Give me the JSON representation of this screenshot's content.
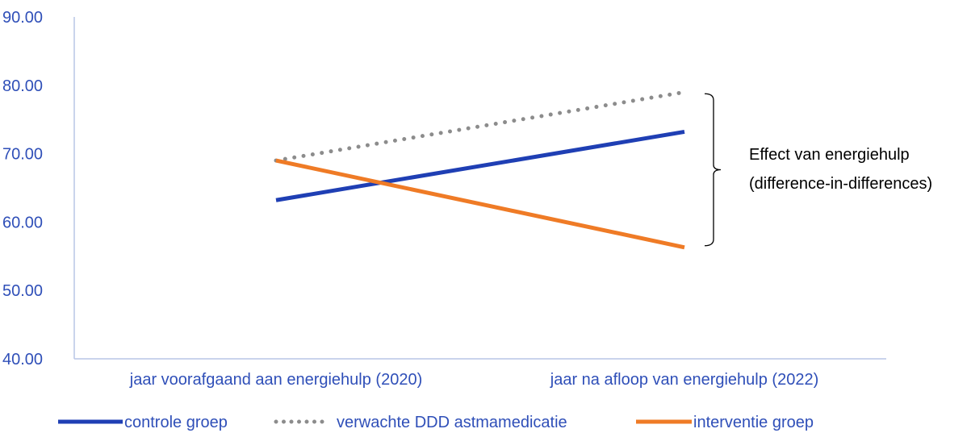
{
  "chart_data": {
    "type": "line",
    "categories": [
      "jaar voorafgaand aan energiehulp (2020)",
      "jaar na afloop van energiehulp (2022)"
    ],
    "ylim": [
      40,
      90
    ],
    "yticks": [
      "40.00",
      "50.00",
      "60.00",
      "70.00",
      "80.00",
      "90.00"
    ],
    "grid": false,
    "legend_position": "bottom",
    "series": [
      {
        "name": "controle groep",
        "values": [
          63.2,
          73.2
        ],
        "color": "#1f3fb4",
        "style": "solid"
      },
      {
        "name": "verwachte DDD astmamedicatie",
        "values": [
          69.0,
          79.0
        ],
        "color": "#8c8c8c",
        "style": "dotted"
      },
      {
        "name": "interventie groep",
        "values": [
          69.0,
          56.3
        ],
        "color": "#ef7b26",
        "style": "solid"
      }
    ],
    "annotation": {
      "text_lines": [
        "Effect van energiehulp",
        "(difference-in-differences)"
      ],
      "from_value": 79.0,
      "to_value": 56.3
    },
    "colors": {
      "axis": "#b9c6e6",
      "tick_text": "#2f4fb8",
      "annotation_text": "#000000"
    }
  }
}
